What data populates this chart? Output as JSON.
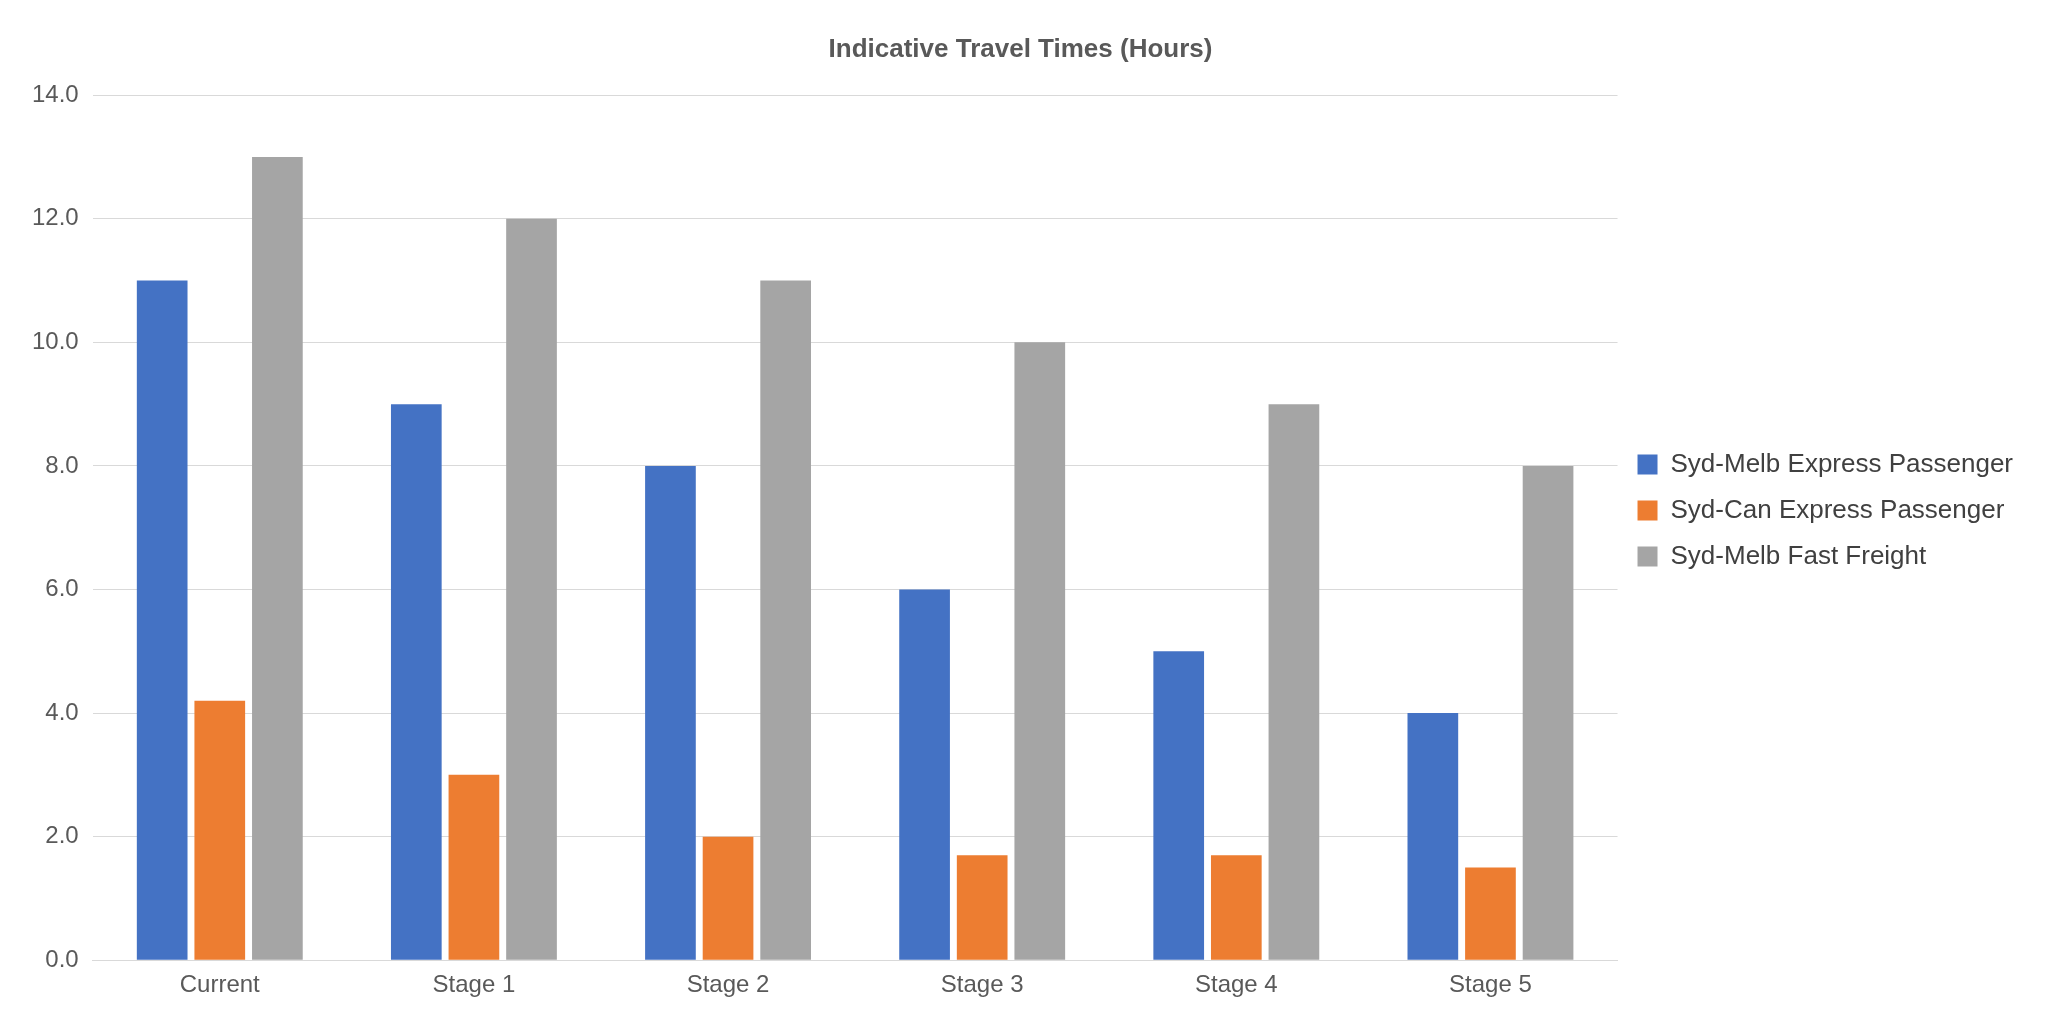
{
  "chart_data": {
    "type": "bar",
    "title": "Indicative Travel Times (Hours)",
    "categories": [
      "Current",
      "Stage 1",
      "Stage 2",
      "Stage 3",
      "Stage 4",
      "Stage 5"
    ],
    "series": [
      {
        "name": "Syd-Melb Express Passenger",
        "color": "#4472c4",
        "values": [
          11,
          9,
          8,
          6,
          5,
          4
        ]
      },
      {
        "name": "Syd-Can Express Passenger",
        "color": "#ed7d31",
        "values": [
          4.2,
          3,
          2,
          1.7,
          1.7,
          1.5
        ]
      },
      {
        "name": "Syd-Melb Fast Freight",
        "color": "#a5a5a5",
        "values": [
          13,
          12,
          11,
          10,
          9,
          8
        ]
      }
    ],
    "ylim": [
      0,
      14
    ],
    "yticks": [
      {
        "value": 0,
        "label": "0.0"
      },
      {
        "value": 2,
        "label": "2.0"
      },
      {
        "value": 4,
        "label": "4.0"
      },
      {
        "value": 6,
        "label": "6.0"
      },
      {
        "value": 8,
        "label": "8.0"
      },
      {
        "value": 10,
        "label": "10.0"
      },
      {
        "value": 12,
        "label": "12.0"
      },
      {
        "value": 14,
        "label": "14.0"
      }
    ],
    "grid": "y",
    "legend": "right"
  }
}
